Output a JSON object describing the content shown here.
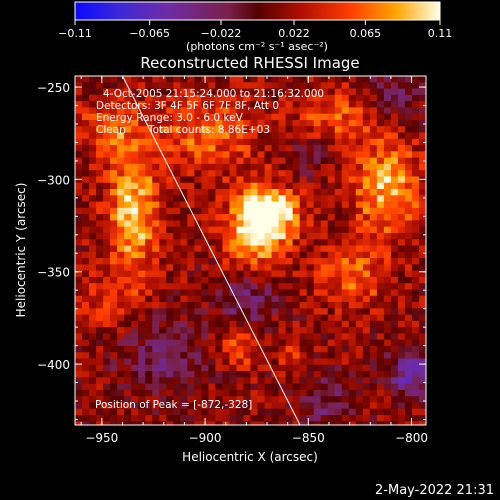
{
  "chart_data": {
    "type": "heatmap",
    "title": "Reconstructed RHESSI Image",
    "xlabel": "Heliocentric X (arcsec)",
    "ylabel": "Heliocentric Y (arcsec)",
    "xlim": [
      -963,
      -793
    ],
    "ylim": [
      -433,
      -244
    ],
    "x_ticks": [
      -950,
      -900,
      -850,
      -800
    ],
    "y_ticks": [
      -250,
      -300,
      -350,
      -400
    ],
    "x_tick_labels": [
      "−950",
      "−900",
      "−850",
      "−800"
    ],
    "y_tick_labels": [
      "−250",
      "−300",
      "−350",
      "−400"
    ],
    "colorbar": {
      "min": -0.11,
      "max": 0.11,
      "ticks": [
        -0.11,
        -0.065,
        -0.022,
        0.022,
        0.065,
        0.11
      ],
      "tick_labels": [
        "−0.11",
        "−0.065",
        "−0.022",
        "0.022",
        "0.065",
        "0.11"
      ],
      "unit_label": "(photons cm⁻² s⁻¹ asec⁻²)"
    },
    "annotations": [
      "4-Oct-2005 21:15:24.000 to 21:16:32.000",
      "Detectors: 3F 4F 5F 6F 7F 8F, Att 0",
      "Energy Range: 3.0 - 6.0 keV",
      "Clean",
      "Total counts: 8.86E+03"
    ],
    "peak_label": "Position of Peak = [-872,-328]",
    "peak": [
      -872,
      -328
    ],
    "limb_line": [
      [
        -940,
        -244
      ],
      [
        -854,
        -433
      ]
    ],
    "sources": [
      {
        "x": -875,
        "y": -325,
        "sx": 10,
        "sy": 14,
        "amp": 0.11
      },
      {
        "x": -865,
        "y": -318,
        "sx": 9,
        "sy": 9,
        "amp": 0.06
      },
      {
        "x": -935,
        "y": -318,
        "sx": 9,
        "sy": 26,
        "amp": 0.08
      },
      {
        "x": -900,
        "y": -275,
        "sx": 18,
        "sy": 14,
        "amp": 0.05
      },
      {
        "x": -812,
        "y": -305,
        "sx": 12,
        "sy": 18,
        "amp": 0.075
      },
      {
        "x": -828,
        "y": -352,
        "sx": 12,
        "sy": 12,
        "amp": 0.05
      },
      {
        "x": -948,
        "y": -272,
        "sx": 9,
        "sy": 10,
        "amp": 0.05
      },
      {
        "x": -835,
        "y": -265,
        "sx": 15,
        "sy": 10,
        "amp": 0.045
      },
      {
        "x": -883,
        "y": -392,
        "sx": 6,
        "sy": 6,
        "amp": 0.05
      },
      {
        "x": -858,
        "y": -395,
        "sx": 5,
        "sy": 6,
        "amp": 0.03
      },
      {
        "x": -950,
        "y": -365,
        "sx": 10,
        "sy": 10,
        "amp": 0.03
      },
      {
        "x": -800,
        "y": -405,
        "sx": 8,
        "sy": 9,
        "amp": -0.07
      },
      {
        "x": -920,
        "y": -395,
        "sx": 14,
        "sy": 14,
        "amp": -0.04
      },
      {
        "x": -880,
        "y": -365,
        "sx": 10,
        "sy": 9,
        "amp": -0.045
      },
      {
        "x": -810,
        "y": -255,
        "sx": 10,
        "sy": 10,
        "amp": -0.04
      },
      {
        "x": -840,
        "y": -420,
        "sx": 9,
        "sy": 9,
        "amp": -0.04
      },
      {
        "x": -850,
        "y": -288,
        "sx": 7,
        "sy": 7,
        "amp": -0.03
      }
    ],
    "background": 0.014
  },
  "footer": {
    "timestamp": "2-May-2022 21:31"
  }
}
